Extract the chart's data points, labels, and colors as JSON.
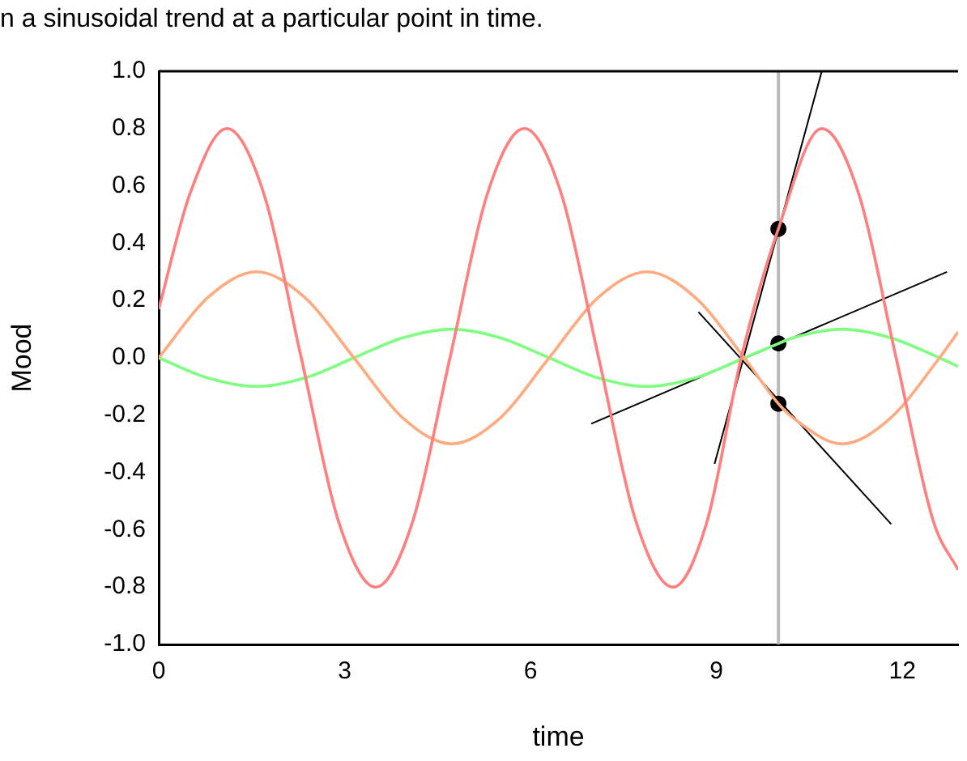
{
  "chart_data": {
    "type": "line",
    "title": "n a sinusoidal trend at a particular point in time.",
    "xlabel": "time",
    "ylabel": "Mood",
    "xlim": [
      0,
      12.9
    ],
    "xticks": [
      0,
      3,
      6,
      9,
      12
    ],
    "ylim": [
      -1,
      1
    ],
    "yticks": [
      {
        "value": -1,
        "label": "-1.0"
      },
      {
        "value": -0.8,
        "label": "-0.8"
      },
      {
        "value": -0.6,
        "label": "-0.6"
      },
      {
        "value": -0.4,
        "label": "-0.4"
      },
      {
        "value": -0.2,
        "label": "-0.2"
      },
      {
        "value": 0,
        "label": "0.0"
      },
      {
        "value": 0.2,
        "label": "0.2"
      },
      {
        "value": 0.4,
        "label": "0.4"
      },
      {
        "value": 0.6,
        "label": "0.6"
      },
      {
        "value": 0.8,
        "label": "0.8"
      },
      {
        "value": 1,
        "label": "1.0"
      }
    ],
    "grid": false,
    "legend": false,
    "marker": "none",
    "series": [
      {
        "type": "line",
        "color": "#ff7f7f",
        "x": [
          0,
          0.5,
          1.1,
          1.7,
          2.3,
          2.9,
          3.5,
          4.1,
          4.7,
          5.3,
          5.9,
          6.5,
          7.1,
          7.7,
          8.3,
          8.85,
          9.4,
          10,
          10.7,
          11.3,
          11.9,
          12.5,
          12.9
        ],
        "values": [
          0.17,
          0.57,
          0.8,
          0.57,
          0,
          -0.57,
          -0.8,
          -0.57,
          0,
          0.57,
          0.8,
          0.57,
          0,
          -0.57,
          -0.8,
          -0.57,
          0,
          0.45,
          0.8,
          0.57,
          0,
          -0.57,
          -0.74
        ]
      },
      {
        "type": "line",
        "color": "#ffaa7f",
        "x": [
          0,
          0.79,
          1.58,
          2.36,
          3.15,
          3.94,
          4.73,
          5.51,
          6.3,
          7.09,
          7.88,
          8.66,
          9.45,
          10,
          10.24,
          11.03,
          11.81,
          12.6,
          12.9
        ],
        "values": [
          0,
          0.21,
          0.3,
          0.21,
          0,
          -0.21,
          -0.3,
          -0.21,
          0,
          0.21,
          0.3,
          0.21,
          0,
          -0.16,
          -0.21,
          -0.3,
          -0.21,
          0,
          0.09
        ]
      },
      {
        "type": "line",
        "color": "#7fff7f",
        "x": [
          0,
          0.79,
          1.58,
          2.36,
          3.15,
          3.94,
          4.73,
          5.51,
          6.3,
          7.09,
          7.88,
          8.66,
          9.45,
          10,
          10.24,
          11.03,
          11.81,
          12.6,
          12.9
        ],
        "values": [
          0,
          -0.07,
          -0.1,
          -0.07,
          0,
          0.07,
          0.1,
          0.07,
          0,
          -0.07,
          -0.1,
          -0.07,
          0,
          0.05,
          0.07,
          0.1,
          0.07,
          0,
          -0.03
        ]
      },
      {
        "type": "line",
        "color": "#000000",
        "x": [
          8.97,
          10.7
        ],
        "values": [
          -0.37,
          1
        ]
      },
      {
        "type": "line",
        "color": "#000000",
        "x": [
          8.71,
          11.82
        ],
        "values": [
          0.16,
          -0.58
        ]
      },
      {
        "type": "line",
        "color": "#000000",
        "x": [
          6.98,
          12.72
        ],
        "values": [
          -0.23,
          0.3
        ]
      },
      {
        "type": "scatter",
        "color": "#000000",
        "marker": "circle",
        "x": [
          10,
          10,
          10
        ],
        "values": [
          0.45,
          0.05,
          -0.16
        ]
      }
    ],
    "ref_lines": [
      {
        "axis": "x",
        "value": 10,
        "color": "#bbbbbb"
      }
    ]
  }
}
